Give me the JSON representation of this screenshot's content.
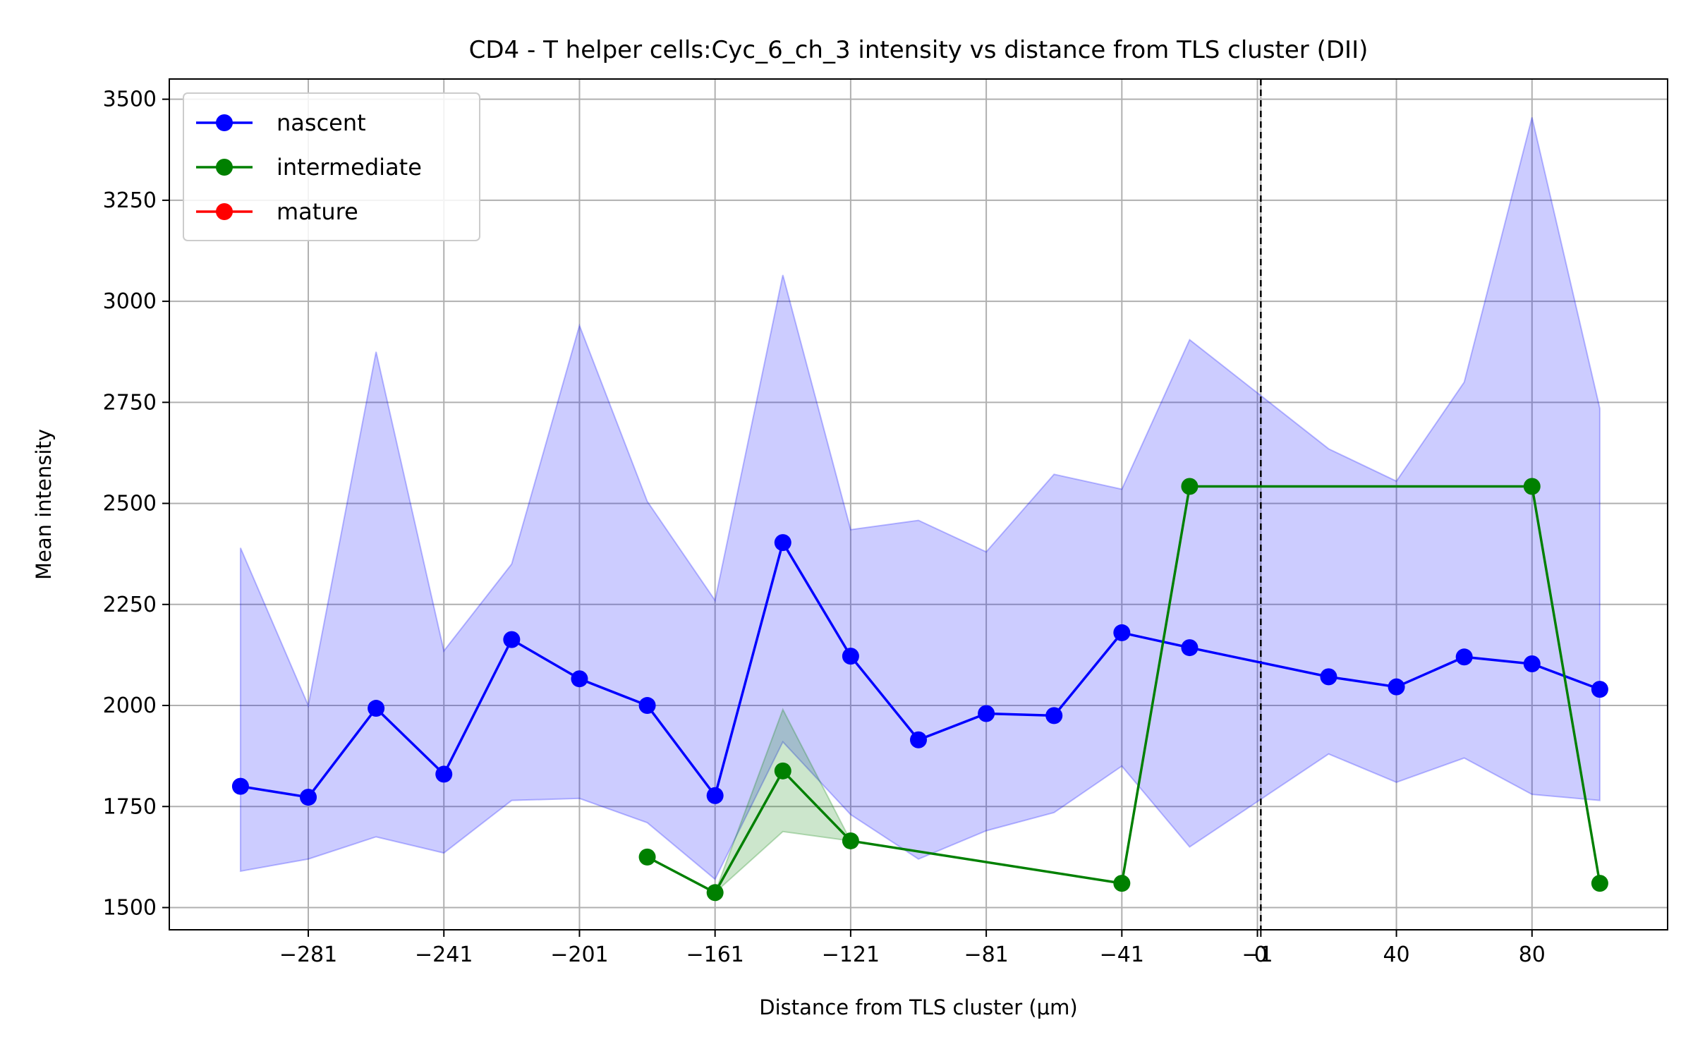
{
  "chart_data": {
    "type": "line",
    "title": "CD4 - T helper cells:Cyc_6_ch_3 intensity vs distance from TLS cluster (DII)",
    "xlabel": "Distance from TLS cluster (μm)",
    "ylabel": "Mean intensity",
    "xlim": [
      -322,
      120
    ],
    "ylim": [
      1445,
      3550
    ],
    "x_ticks": [
      -281,
      -241,
      -201,
      -161,
      -121,
      -81,
      -41,
      -1,
      0,
      40,
      80
    ],
    "x_tick_labels": [
      "−281",
      "−241",
      "−201",
      "−161",
      "−121",
      "−81",
      "−41",
      "−1",
      "0",
      "40",
      "80"
    ],
    "y_ticks": [
      1500,
      1750,
      2000,
      2250,
      2500,
      2750,
      3000,
      3250,
      3500
    ],
    "y_tick_labels": [
      "1500",
      "1750",
      "2000",
      "2250",
      "2500",
      "2750",
      "3000",
      "3250",
      "3500"
    ],
    "grid": true,
    "vline": {
      "x": 0,
      "style": "dashed",
      "color": "#000000"
    },
    "legend": {
      "position": "top-left"
    },
    "series": [
      {
        "name": "nascent",
        "color": "#0000ff",
        "band_color": "#0000ff",
        "points": [
          {
            "x": -301,
            "y": 1800,
            "lo": 1590,
            "hi": 2390
          },
          {
            "x": -281,
            "y": 1773,
            "lo": 1620,
            "hi": 2000
          },
          {
            "x": -261,
            "y": 1993,
            "lo": 1675,
            "hi": 2875
          },
          {
            "x": -241,
            "y": 1830,
            "lo": 1635,
            "hi": 2135
          },
          {
            "x": -221,
            "y": 2163,
            "lo": 1765,
            "hi": 2350
          },
          {
            "x": -201,
            "y": 2066,
            "lo": 1770,
            "hi": 2940
          },
          {
            "x": -181,
            "y": 2000,
            "lo": 1710,
            "hi": 2505
          },
          {
            "x": -161,
            "y": 1777,
            "lo": 1570,
            "hi": 2260
          },
          {
            "x": -141,
            "y": 2403,
            "lo": 1910,
            "hi": 3065
          },
          {
            "x": -121,
            "y": 2122,
            "lo": 1730,
            "hi": 2435
          },
          {
            "x": -101,
            "y": 1915,
            "lo": 1620,
            "hi": 2458
          },
          {
            "x": -81,
            "y": 1980,
            "lo": 1690,
            "hi": 2380
          },
          {
            "x": -61,
            "y": 1975,
            "lo": 1735,
            "hi": 2572
          },
          {
            "x": -41,
            "y": 2180,
            "lo": 1850,
            "hi": 2535
          },
          {
            "x": -21,
            "y": 2143,
            "lo": 1650,
            "hi": 2905
          },
          {
            "x": 20,
            "y": 2071,
            "lo": 1880,
            "hi": 2635
          },
          {
            "x": 40,
            "y": 2046,
            "lo": 1810,
            "hi": 2555
          },
          {
            "x": 60,
            "y": 2120,
            "lo": 1870,
            "hi": 2800
          },
          {
            "x": 80,
            "y": 2103,
            "lo": 1780,
            "hi": 3455
          },
          {
            "x": 100,
            "y": 2040,
            "lo": 1765,
            "hi": 2735
          }
        ]
      },
      {
        "name": "intermediate",
        "color": "#008000",
        "band_color": "#008000",
        "points": [
          {
            "x": -181,
            "y": 1625
          },
          {
            "x": -161,
            "y": 1537,
            "lo": 1537,
            "hi": 1537
          },
          {
            "x": -141,
            "y": 1838,
            "lo": 1688,
            "hi": 1990
          },
          {
            "x": -121,
            "y": 1665,
            "lo": 1665,
            "hi": 1665
          },
          {
            "x": -41,
            "y": 1560
          },
          {
            "x": -21,
            "y": 2542
          },
          {
            "x": 80,
            "y": 2542
          },
          {
            "x": 100,
            "y": 1560
          }
        ]
      },
      {
        "name": "mature",
        "color": "#ff0000",
        "band_color": "#ff0000",
        "points": []
      }
    ]
  }
}
